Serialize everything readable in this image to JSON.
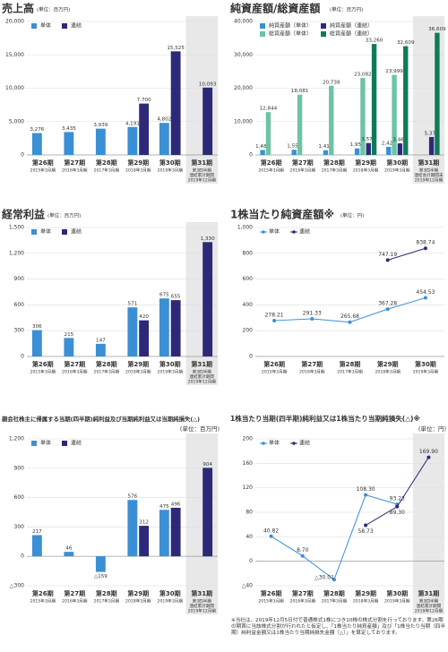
{
  "chart_data": [
    {
      "type": "bar",
      "title": "売上高",
      "unit": "(単位：百万円)",
      "categories": [
        "第26期",
        "第27期",
        "第28期",
        "第29期",
        "第30期",
        "第31期"
      ],
      "subcategories": [
        [
          "2015年3月期"
        ],
        [
          "2016年3月期"
        ],
        [
          "2017年3月期"
        ],
        [
          "2018年3月期"
        ],
        [
          "2019年3月期"
        ],
        [
          "第3四半期",
          "連結累計期間",
          "2019年12月期"
        ]
      ],
      "highlight": "第31期",
      "series": [
        {
          "name": "単体",
          "color": "#3b8fd4",
          "values": [
            3276,
            3435,
            3939,
            4191,
            4802,
            null
          ],
          "value_labels": [
            "3,276",
            "3,435",
            "3,939",
            "4,191",
            "4,802",
            null
          ]
        },
        {
          "name": "連結",
          "color": "#2c2a78",
          "values": [
            null,
            null,
            null,
            7700,
            15525,
            10093
          ],
          "value_labels": [
            null,
            null,
            null,
            "7,700",
            "15,525",
            "10,093"
          ]
        }
      ],
      "ylim": [
        0,
        20000
      ],
      "yticks": [
        0,
        {
          "value": 5000,
          "label": "5,000"
        },
        {
          "value": 10000,
          "label": "10,000"
        },
        {
          "value": 15000,
          "label": "15,000"
        },
        {
          "value": 20000,
          "label": "20,000"
        }
      ],
      "grid": true
    },
    {
      "type": "bar",
      "title": "純資産額/総資産額",
      "unit": "(単位：百万円)",
      "categories": [
        "第26期",
        "第27期",
        "第28期",
        "第29期",
        "第30期",
        "第31期"
      ],
      "subcategories": [
        [
          "2015年3月期"
        ],
        [
          "2016年3月期"
        ],
        [
          "2017年3月期"
        ],
        [
          "2018年3月期"
        ],
        [
          "2019年3月期"
        ],
        [
          "第3四半期",
          "連結会計期間末",
          "2019年12月期"
        ]
      ],
      "highlight": "第31期",
      "series": [
        {
          "name": "純資産額（単体）",
          "color": "#3b8fd4",
          "values": [
            1481,
            1551,
            1415,
            1956,
            2423,
            null
          ],
          "value_labels": [
            "1,481",
            "1,551",
            "1,415",
            "1,956",
            "2,423",
            null
          ]
        },
        {
          "name": "総資産額（単体）",
          "color": "#6cc4a4",
          "values": [
            12844,
            18081,
            20738,
            23082,
            23999,
            null
          ],
          "value_labels": [
            "12,844",
            "18,081",
            "20,738",
            "23,082",
            "23,999",
            null
          ]
        },
        {
          "name": "純資産額（連結）",
          "color": "#2c2a78",
          "values": [
            null,
            null,
            null,
            3579,
            3467,
            5379
          ],
          "value_labels": [
            null,
            null,
            null,
            "3,579",
            "3,467",
            "5,379"
          ]
        },
        {
          "name": "総資産額（連結）",
          "color": "#0f7a5a",
          "values": [
            null,
            null,
            null,
            33260,
            32609,
            36609
          ],
          "value_labels": [
            null,
            null,
            null,
            "33,260",
            "32,609",
            "36,609"
          ]
        }
      ],
      "ylim": [
        0,
        40000
      ],
      "yticks": [
        0,
        {
          "value": 10000,
          "label": "10,000"
        },
        {
          "value": 20000,
          "label": "20,000"
        },
        {
          "value": 30000,
          "label": "30,000"
        },
        {
          "value": 40000,
          "label": "40,000"
        }
      ],
      "grid": true
    },
    {
      "type": "bar",
      "title": "経常利益",
      "unit": "(単位：百万円)",
      "categories": [
        "第26期",
        "第27期",
        "第28期",
        "第29期",
        "第30期",
        "第31期"
      ],
      "subcategories": [
        [
          "2015年3月期"
        ],
        [
          "2016年3月期"
        ],
        [
          "2017年3月期"
        ],
        [
          "2018年3月期"
        ],
        [
          "2019年3月期"
        ],
        [
          "第3四半期",
          "連結累計期間",
          "2019年12月期"
        ]
      ],
      "highlight": "第31期",
      "series": [
        {
          "name": "単体",
          "color": "#3b8fd4",
          "values": [
            306,
            215,
            147,
            571,
            675,
            null
          ]
        },
        {
          "name": "連結",
          "color": "#2c2a78",
          "values": [
            null,
            null,
            null,
            420,
            655,
            1330
          ],
          "value_labels": [
            null,
            null,
            null,
            "420",
            "655",
            "1,330"
          ]
        }
      ],
      "ylim": [
        0,
        1500
      ],
      "yticks": [
        0,
        300,
        600,
        900,
        {
          "value": 1200,
          "label": "1,200"
        },
        {
          "value": 1500,
          "label": "1,500"
        }
      ],
      "grid": true
    },
    {
      "type": "line",
      "title": "1株当たり純資産額※",
      "unit": "(単位：円)",
      "categories": [
        "第26期",
        "第27期",
        "第28期",
        "第29期",
        "第30期"
      ],
      "subcategories": [
        [
          "2015年3月期"
        ],
        [
          "2016年3月期"
        ],
        [
          "2017年3月期"
        ],
        [
          "2018年3月期"
        ],
        [
          "2019年3月期"
        ]
      ],
      "series": [
        {
          "name": "単体",
          "color": "#3b8fd4",
          "values": [
            278.21,
            291.33,
            265.68,
            367.28,
            454.53
          ]
        },
        {
          "name": "連結",
          "color": "#2c2a78",
          "values": [
            null,
            null,
            null,
            747.19,
            838.74
          ]
        }
      ],
      "ylim": [
        0,
        1000
      ],
      "yticks": [
        0,
        200,
        400,
        600,
        800,
        {
          "value": 1000,
          "label": "1,000"
        }
      ],
      "grid": true
    },
    {
      "type": "bar",
      "title": "親会社株主に帰属する当期(四半期)純利益及び当期純利益又は当期純損失(△)",
      "unit": "(単位：百万円)",
      "categories": [
        "第26期",
        "第27期",
        "第28期",
        "第29期",
        "第30期",
        "第31期"
      ],
      "subcategories": [
        [
          "2015年3月期"
        ],
        [
          "2016年3月期"
        ],
        [
          "2017年3月期"
        ],
        [
          "2018年3月期"
        ],
        [
          "2019年3月期"
        ],
        [
          "第3四半期",
          "連結累計期間",
          "2019年12月期"
        ]
      ],
      "highlight": "第31期",
      "series": [
        {
          "name": "単体",
          "color": "#3b8fd4",
          "values": [
            217,
            46,
            -159,
            576,
            475,
            null
          ],
          "value_labels": [
            "217",
            "46",
            "△159",
            "576",
            "475",
            null
          ]
        },
        {
          "name": "連結",
          "color": "#2c2a78",
          "values": [
            null,
            null,
            null,
            312,
            496,
            904
          ]
        }
      ],
      "ylim": [
        -300,
        1200
      ],
      "yticks": [
        {
          "value": -300,
          "label": "△300"
        },
        0,
        300,
        600,
        900,
        {
          "value": 1200,
          "label": "1,200"
        }
      ],
      "grid": true
    },
    {
      "type": "line",
      "title": "1株当たり当期(四半期)純利益又は1株当たり当期純損失(△)※",
      "unit": "(単位：円)",
      "categories": [
        "第26期",
        "第27期",
        "第28期",
        "第29期",
        "第30期",
        "第31期"
      ],
      "subcategories": [
        [
          "2015年3月期"
        ],
        [
          "2016年3月期"
        ],
        [
          "2017年3月期"
        ],
        [
          "2018年3月期"
        ],
        [
          "2019年3月期"
        ],
        [
          "第3四半期",
          "連結累計期間",
          "2019年12月期"
        ]
      ],
      "highlight": "第31期",
      "series": [
        {
          "name": "単体",
          "color": "#3b8fd4",
          "values": [
            40.82,
            8.7,
            -30.01,
            108.3,
            93.23,
            null
          ],
          "value_labels": [
            "40.82",
            "8.70",
            "△30.01",
            "108.30",
            "93.23",
            null
          ]
        },
        {
          "name": "連結",
          "color": "#2c2a78",
          "values": [
            null,
            null,
            null,
            58.73,
            89.3,
            169.9
          ],
          "value_labels": [
            null,
            null,
            null,
            "58.73",
            "89.30",
            "169.90"
          ]
        }
      ],
      "ylim": [
        -40,
        200
      ],
      "yticks": [
        {
          "value": -40,
          "label": "△40"
        },
        0,
        40,
        80,
        120,
        160,
        200
      ],
      "grid": true
    }
  ],
  "footnote": "※当社は、2019年12月5日付で普通株式1株につき10株の株式分割を行っております。第26期の期首に当該株式分割が行われたと仮定し、「1株当たり純資産額」及び「1株当たり当期（四半期）純利益金額又は1株当たり当期純損失金額（△）」を算定しております。"
}
